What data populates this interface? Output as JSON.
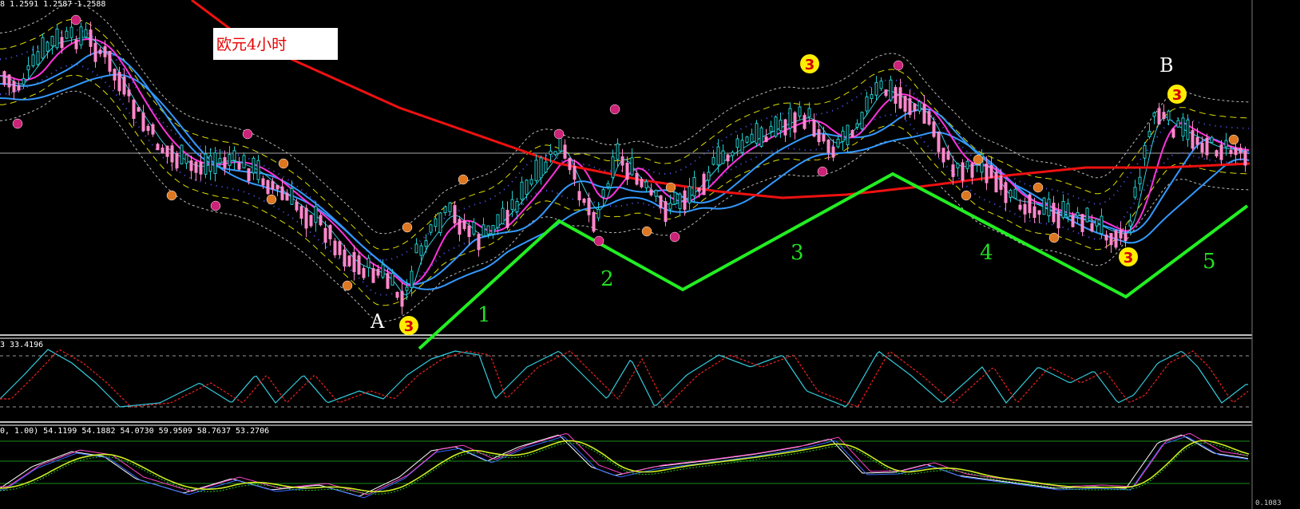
{
  "header": {
    "main_values": "8 1.2591 1.2587 1.2588",
    "osc1_values": "3 33.4196",
    "osc2_values": "0, 1.00) 54.1199 54.1882 54.0730 59.9509 58.7637 53.2706",
    "bottom_right": "0.1083"
  },
  "title": "欧元4小时",
  "points": {
    "a": "A",
    "b": "B"
  },
  "waves": [
    "1",
    "2",
    "3",
    "4",
    "5"
  ],
  "marker_label": "3",
  "colors": {
    "background": "#000000",
    "wave_line": "#22ee22",
    "long_ma": "#ee1111",
    "magenta_ma": "#ff33dd",
    "cyan_ma": "#33ccdd",
    "blue_ma": "#3399ff",
    "bull_candle": "#22cccc",
    "bear_candle": "#ff88cc",
    "yellow_band": "#dddd00",
    "grey_band": "#bbbbbb",
    "marker_yellow": "#ffee00"
  },
  "chart_data": {
    "type": "line",
    "title": "欧元4小时",
    "wave_points": [
      {
        "label": "A",
        "wave_index": 0,
        "pivot": "low"
      },
      {
        "label": "1",
        "wave_index": 1,
        "pivot": "high"
      },
      {
        "label": "2",
        "wave_index": 2,
        "pivot": "low"
      },
      {
        "label": "3",
        "wave_index": 3,
        "pivot": "high"
      },
      {
        "label": "4",
        "wave_index": 4,
        "pivot": "low"
      },
      {
        "label": "5",
        "wave_index": 5,
        "pivot": "high"
      },
      {
        "label": "B",
        "wave_index": 6,
        "pivot": "high"
      }
    ],
    "main_panel_last": 1.2588,
    "oscillator1_value": 33.4196,
    "oscillator2_values": [
      54.1199,
      54.1882,
      54.073,
      59.9509,
      58.7637,
      53.2706
    ]
  }
}
